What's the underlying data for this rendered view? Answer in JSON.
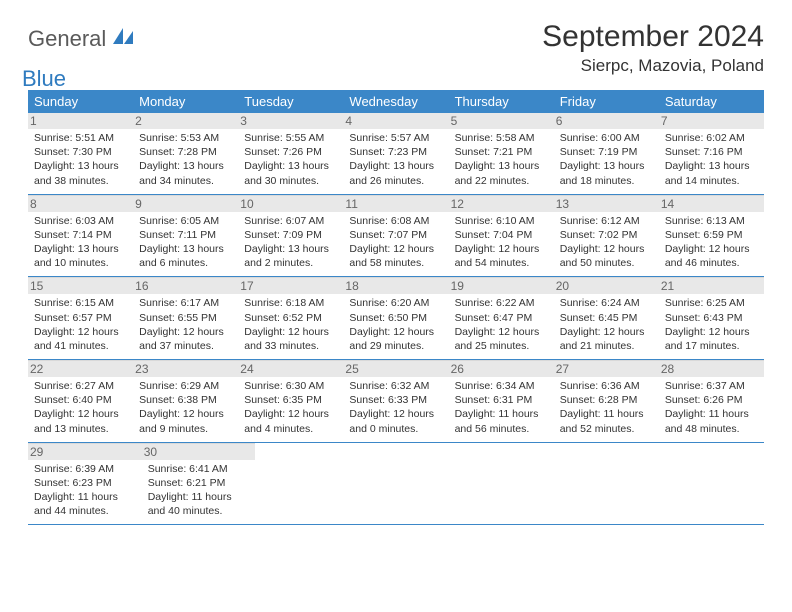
{
  "logo": {
    "word1": "General",
    "word2": "Blue"
  },
  "title": "September 2024",
  "location": "Sierpc, Mazovia, Poland",
  "colors": {
    "header_bg": "#3b87c8",
    "header_text": "#ffffff",
    "day_num_bg": "#e8e8e8",
    "day_num_text": "#666666",
    "body_text": "#333333",
    "row_border": "#3b87c8",
    "logo_gray": "#5a5a5a",
    "logo_blue": "#2f7bbf"
  },
  "weekdays": [
    "Sunday",
    "Monday",
    "Tuesday",
    "Wednesday",
    "Thursday",
    "Friday",
    "Saturday"
  ],
  "weeks": [
    [
      {
        "n": "1",
        "sr": "5:51 AM",
        "ss": "7:30 PM",
        "dl": "13 hours and 38 minutes."
      },
      {
        "n": "2",
        "sr": "5:53 AM",
        "ss": "7:28 PM",
        "dl": "13 hours and 34 minutes."
      },
      {
        "n": "3",
        "sr": "5:55 AM",
        "ss": "7:26 PM",
        "dl": "13 hours and 30 minutes."
      },
      {
        "n": "4",
        "sr": "5:57 AM",
        "ss": "7:23 PM",
        "dl": "13 hours and 26 minutes."
      },
      {
        "n": "5",
        "sr": "5:58 AM",
        "ss": "7:21 PM",
        "dl": "13 hours and 22 minutes."
      },
      {
        "n": "6",
        "sr": "6:00 AM",
        "ss": "7:19 PM",
        "dl": "13 hours and 18 minutes."
      },
      {
        "n": "7",
        "sr": "6:02 AM",
        "ss": "7:16 PM",
        "dl": "13 hours and 14 minutes."
      }
    ],
    [
      {
        "n": "8",
        "sr": "6:03 AM",
        "ss": "7:14 PM",
        "dl": "13 hours and 10 minutes."
      },
      {
        "n": "9",
        "sr": "6:05 AM",
        "ss": "7:11 PM",
        "dl": "13 hours and 6 minutes."
      },
      {
        "n": "10",
        "sr": "6:07 AM",
        "ss": "7:09 PM",
        "dl": "13 hours and 2 minutes."
      },
      {
        "n": "11",
        "sr": "6:08 AM",
        "ss": "7:07 PM",
        "dl": "12 hours and 58 minutes."
      },
      {
        "n": "12",
        "sr": "6:10 AM",
        "ss": "7:04 PM",
        "dl": "12 hours and 54 minutes."
      },
      {
        "n": "13",
        "sr": "6:12 AM",
        "ss": "7:02 PM",
        "dl": "12 hours and 50 minutes."
      },
      {
        "n": "14",
        "sr": "6:13 AM",
        "ss": "6:59 PM",
        "dl": "12 hours and 46 minutes."
      }
    ],
    [
      {
        "n": "15",
        "sr": "6:15 AM",
        "ss": "6:57 PM",
        "dl": "12 hours and 41 minutes."
      },
      {
        "n": "16",
        "sr": "6:17 AM",
        "ss": "6:55 PM",
        "dl": "12 hours and 37 minutes."
      },
      {
        "n": "17",
        "sr": "6:18 AM",
        "ss": "6:52 PM",
        "dl": "12 hours and 33 minutes."
      },
      {
        "n": "18",
        "sr": "6:20 AM",
        "ss": "6:50 PM",
        "dl": "12 hours and 29 minutes."
      },
      {
        "n": "19",
        "sr": "6:22 AM",
        "ss": "6:47 PM",
        "dl": "12 hours and 25 minutes."
      },
      {
        "n": "20",
        "sr": "6:24 AM",
        "ss": "6:45 PM",
        "dl": "12 hours and 21 minutes."
      },
      {
        "n": "21",
        "sr": "6:25 AM",
        "ss": "6:43 PM",
        "dl": "12 hours and 17 minutes."
      }
    ],
    [
      {
        "n": "22",
        "sr": "6:27 AM",
        "ss": "6:40 PM",
        "dl": "12 hours and 13 minutes."
      },
      {
        "n": "23",
        "sr": "6:29 AM",
        "ss": "6:38 PM",
        "dl": "12 hours and 9 minutes."
      },
      {
        "n": "24",
        "sr": "6:30 AM",
        "ss": "6:35 PM",
        "dl": "12 hours and 4 minutes."
      },
      {
        "n": "25",
        "sr": "6:32 AM",
        "ss": "6:33 PM",
        "dl": "12 hours and 0 minutes."
      },
      {
        "n": "26",
        "sr": "6:34 AM",
        "ss": "6:31 PM",
        "dl": "11 hours and 56 minutes."
      },
      {
        "n": "27",
        "sr": "6:36 AM",
        "ss": "6:28 PM",
        "dl": "11 hours and 52 minutes."
      },
      {
        "n": "28",
        "sr": "6:37 AM",
        "ss": "6:26 PM",
        "dl": "11 hours and 48 minutes."
      }
    ],
    [
      {
        "n": "29",
        "sr": "6:39 AM",
        "ss": "6:23 PM",
        "dl": "11 hours and 44 minutes."
      },
      {
        "n": "30",
        "sr": "6:41 AM",
        "ss": "6:21 PM",
        "dl": "11 hours and 40 minutes."
      },
      null,
      null,
      null,
      null,
      null
    ]
  ],
  "labels": {
    "sunrise": "Sunrise:",
    "sunset": "Sunset:",
    "daylight": "Daylight:"
  }
}
